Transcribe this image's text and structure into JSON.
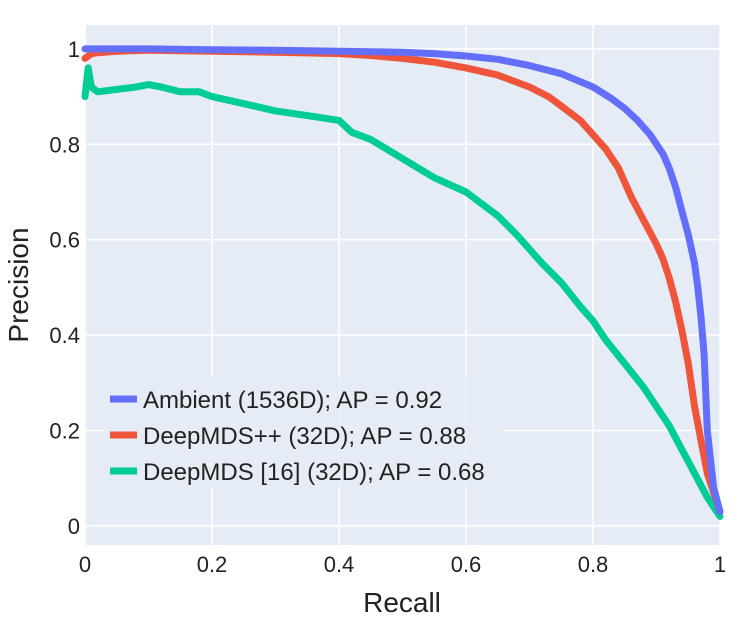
{
  "chart_data": {
    "type": "line",
    "xlabel": "Recall",
    "ylabel": "Precision",
    "xlim": [
      0,
      1
    ],
    "ylim": [
      -0.04,
      1.05
    ],
    "xticks": [
      0,
      0.2,
      0.4,
      0.6,
      0.8,
      1
    ],
    "xtick_labels": [
      "0",
      "0.2",
      "0.4",
      "0.6",
      "0.8",
      "1"
    ],
    "yticks": [
      0,
      0.2,
      0.4,
      0.6,
      0.8,
      1
    ],
    "ytick_labels": [
      "0",
      "0.2",
      "0.4",
      "0.6",
      "0.8",
      "1"
    ],
    "grid": true,
    "background": "#e5ecf6",
    "legend_position": "bottom-left",
    "series": [
      {
        "name": "Ambient (1536D); AP = 0.92",
        "color": "#636efa",
        "x": [
          0,
          0.1,
          0.2,
          0.3,
          0.4,
          0.5,
          0.55,
          0.6,
          0.65,
          0.7,
          0.75,
          0.8,
          0.83,
          0.85,
          0.87,
          0.89,
          0.9,
          0.91,
          0.92,
          0.93,
          0.94,
          0.95,
          0.96,
          0.965,
          0.97,
          0.975,
          0.98,
          0.99,
          1.0
        ],
        "y": [
          1.0,
          1.0,
          0.998,
          0.997,
          0.995,
          0.993,
          0.99,
          0.985,
          0.978,
          0.965,
          0.948,
          0.92,
          0.895,
          0.875,
          0.85,
          0.82,
          0.8,
          0.78,
          0.75,
          0.71,
          0.66,
          0.61,
          0.55,
          0.5,
          0.44,
          0.36,
          0.2,
          0.08,
          0.03
        ]
      },
      {
        "name": "DeepMDS++ (32D); AP = 0.88",
        "color": "#ef553b",
        "x": [
          0,
          0.01,
          0.02,
          0.05,
          0.1,
          0.2,
          0.3,
          0.4,
          0.45,
          0.5,
          0.55,
          0.6,
          0.65,
          0.7,
          0.73,
          0.75,
          0.78,
          0.8,
          0.82,
          0.84,
          0.85,
          0.86,
          0.88,
          0.9,
          0.91,
          0.92,
          0.93,
          0.94,
          0.95,
          0.96,
          0.97,
          0.98,
          0.99,
          1.0
        ],
        "y": [
          0.98,
          0.99,
          0.992,
          0.995,
          0.997,
          0.995,
          0.993,
          0.99,
          0.986,
          0.98,
          0.972,
          0.96,
          0.945,
          0.92,
          0.9,
          0.88,
          0.85,
          0.82,
          0.79,
          0.75,
          0.72,
          0.69,
          0.64,
          0.59,
          0.56,
          0.52,
          0.47,
          0.41,
          0.34,
          0.25,
          0.18,
          0.11,
          0.07,
          0.03
        ]
      },
      {
        "name": "DeepMDS [16] (32D); AP = 0.68",
        "color": "#00cc96",
        "x": [
          0,
          0.005,
          0.01,
          0.02,
          0.05,
          0.08,
          0.1,
          0.12,
          0.15,
          0.18,
          0.2,
          0.25,
          0.3,
          0.35,
          0.4,
          0.42,
          0.45,
          0.5,
          0.55,
          0.6,
          0.62,
          0.65,
          0.68,
          0.7,
          0.72,
          0.75,
          0.78,
          0.8,
          0.82,
          0.85,
          0.88,
          0.9,
          0.92,
          0.94,
          0.96,
          0.98,
          1.0
        ],
        "y": [
          0.9,
          0.96,
          0.92,
          0.91,
          0.915,
          0.92,
          0.925,
          0.92,
          0.91,
          0.91,
          0.9,
          0.885,
          0.87,
          0.86,
          0.85,
          0.825,
          0.81,
          0.77,
          0.73,
          0.7,
          0.68,
          0.65,
          0.61,
          0.58,
          0.55,
          0.51,
          0.46,
          0.43,
          0.39,
          0.34,
          0.29,
          0.25,
          0.21,
          0.16,
          0.11,
          0.06,
          0.02
        ]
      }
    ]
  }
}
